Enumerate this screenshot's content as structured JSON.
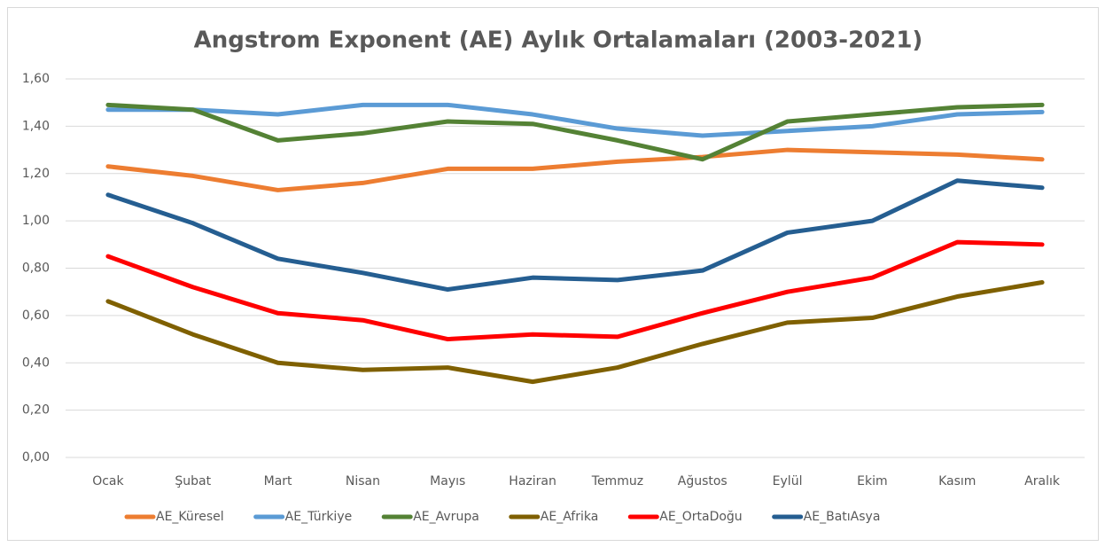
{
  "chart_data": {
    "type": "line",
    "title": "Angstrom Exponent (AE) Aylık Ortalamaları (2003-2021)",
    "categories": [
      "Ocak",
      "Şubat",
      "Mart",
      "Nisan",
      "Mayıs",
      "Haziran",
      "Temmuz",
      "Ağustos",
      "Eylül",
      "Ekim",
      "Kasım",
      "Aralık"
    ],
    "series": [
      {
        "name": "AE_Küresel",
        "color": "#ED7D31",
        "values": [
          1.23,
          1.19,
          1.13,
          1.16,
          1.22,
          1.22,
          1.25,
          1.27,
          1.3,
          1.29,
          1.28,
          1.26
        ]
      },
      {
        "name": "AE_Türkiye",
        "color": "#5B9BD5",
        "values": [
          1.47,
          1.47,
          1.45,
          1.49,
          1.49,
          1.45,
          1.39,
          1.36,
          1.38,
          1.4,
          1.45,
          1.46
        ]
      },
      {
        "name": "AE_Avrupa",
        "color": "#548235",
        "values": [
          1.49,
          1.47,
          1.34,
          1.37,
          1.42,
          1.41,
          1.34,
          1.26,
          1.42,
          1.45,
          1.48,
          1.49
        ]
      },
      {
        "name": "AE_Afrika",
        "color": "#7F6000",
        "values": [
          0.66,
          0.52,
          0.4,
          0.37,
          0.38,
          0.32,
          0.38,
          0.48,
          0.57,
          0.59,
          0.68,
          0.74
        ]
      },
      {
        "name": "AE_OrtaDoğu",
        "color": "#FF0000",
        "values": [
          0.85,
          0.72,
          0.61,
          0.58,
          0.5,
          0.52,
          0.51,
          0.61,
          0.7,
          0.76,
          0.91,
          0.9
        ]
      },
      {
        "name": "AE_BatıAsya",
        "color": "#255E91",
        "values": [
          1.11,
          0.99,
          0.84,
          0.78,
          0.71,
          0.76,
          0.75,
          0.79,
          0.95,
          1.0,
          1.17,
          1.14
        ]
      }
    ],
    "ylim": [
      0,
      1.6
    ],
    "yticks": [
      {
        "value": 0,
        "label": "0,00"
      },
      {
        "value": 0.2,
        "label": "0,20"
      },
      {
        "value": 0.4,
        "label": "0,40"
      },
      {
        "value": 0.6,
        "label": "0,60"
      },
      {
        "value": 0.8,
        "label": "0,80"
      },
      {
        "value": 1.0,
        "label": "1,00"
      },
      {
        "value": 1.2,
        "label": "1,20"
      },
      {
        "value": 1.4,
        "label": "1,40"
      },
      {
        "value": 1.6,
        "label": "1,60"
      }
    ],
    "grid": true,
    "legend": "bottom"
  }
}
